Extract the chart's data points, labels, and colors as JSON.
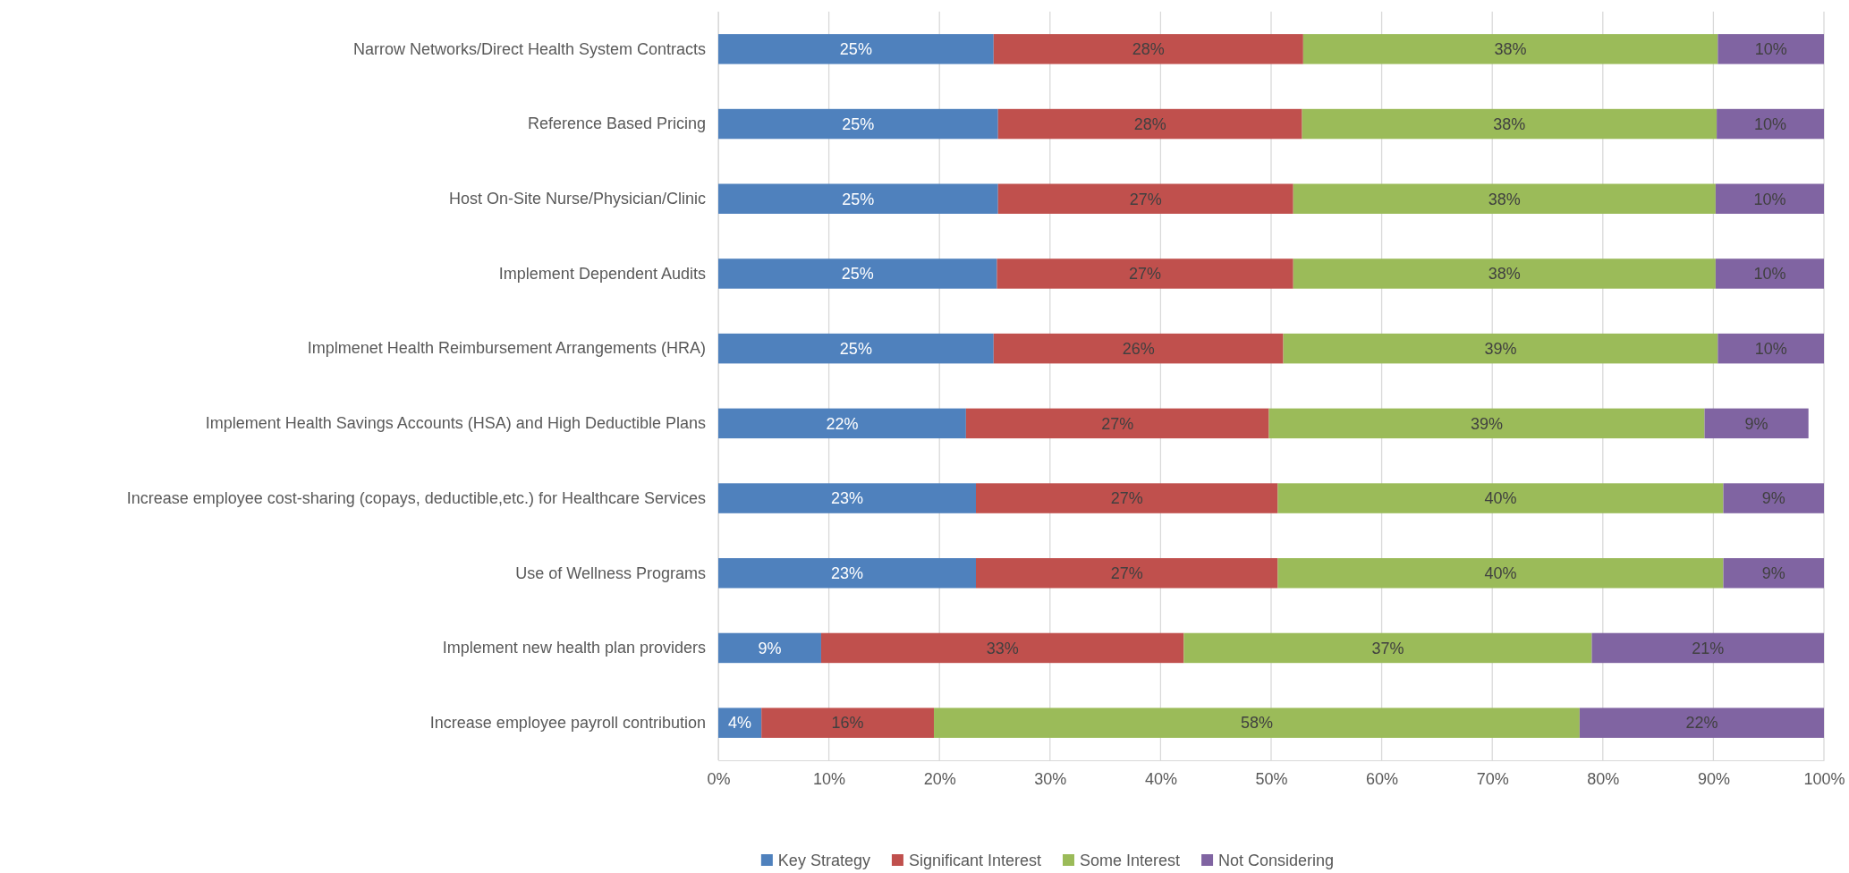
{
  "chart_data": {
    "type": "bar",
    "orientation": "horizontal",
    "stacked": true,
    "categories": [
      "Narrow Networks/Direct Health System Contracts",
      "Reference Based Pricing",
      "Host On-Site Nurse/Physician/Clinic",
      "Implement Dependent Audits",
      "Implmenet Health Reimbursement Arrangements (HRA)",
      "Implement Health Savings Accounts (HSA) and High Deductible Plans",
      "Increase employee cost-sharing (copays, deductible,etc.) for Healthcare Services",
      "Use of Wellness Programs",
      "Implement new health plan providers",
      "Increase employee payroll contribution"
    ],
    "series": [
      {
        "name": "Key Strategy",
        "color": "#4f81bd",
        "values": [
          24.9,
          25.3,
          25.3,
          25.2,
          24.9,
          22.4,
          23.3,
          23.3,
          9.3,
          3.9
        ],
        "value_labels": [
          "25%",
          "25%",
          "25%",
          "25%",
          "25%",
          "22%",
          "23%",
          "23%",
          "9%",
          "4%"
        ]
      },
      {
        "name": "Significant Interest",
        "color": "#c0504d",
        "values": [
          28.0,
          27.5,
          26.7,
          26.8,
          26.2,
          27.4,
          27.3,
          27.3,
          32.8,
          15.6
        ],
        "value_labels": [
          "28%",
          "28%",
          "27%",
          "27%",
          "26%",
          "27%",
          "27%",
          "27%",
          "33%",
          "16%"
        ]
      },
      {
        "name": "Some Interest",
        "color": "#9bbb59",
        "values": [
          37.5,
          37.5,
          38.2,
          38.2,
          39.3,
          39.4,
          40.3,
          40.3,
          36.9,
          58.4
        ],
        "value_labels": [
          "38%",
          "38%",
          "38%",
          "38%",
          "39%",
          "39%",
          "40%",
          "40%",
          "37%",
          "58%"
        ]
      },
      {
        "name": "Not Considering",
        "color": "#8064a2",
        "values": [
          9.6,
          9.7,
          9.8,
          9.8,
          9.6,
          9.4,
          9.1,
          9.1,
          21.0,
          22.1
        ],
        "value_labels": [
          "10%",
          "10%",
          "10%",
          "10%",
          "10%",
          "9%",
          "9%",
          "9%",
          "21%",
          "22%"
        ]
      }
    ],
    "xlim": [
      0,
      100
    ],
    "xticks": [
      {
        "value": 0,
        "label": "0%"
      },
      {
        "value": 10,
        "label": "10%"
      },
      {
        "value": 20,
        "label": "20%"
      },
      {
        "value": 30,
        "label": "30%"
      },
      {
        "value": 40,
        "label": "40%"
      },
      {
        "value": 50,
        "label": "50%"
      },
      {
        "value": 60,
        "label": "60%"
      },
      {
        "value": 70,
        "label": "70%"
      },
      {
        "value": 80,
        "label": "80%"
      },
      {
        "value": 90,
        "label": "90%"
      },
      {
        "value": 100,
        "label": "100%"
      }
    ],
    "grid": "x",
    "legend": "bottom"
  }
}
